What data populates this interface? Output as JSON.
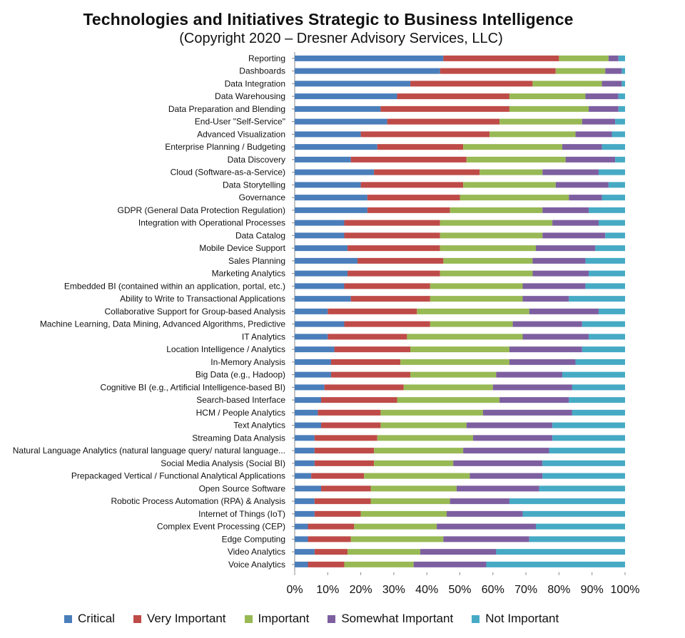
{
  "chart_data": {
    "type": "bar",
    "orientation": "horizontal",
    "stacked": "percent",
    "title": "Technologies and Initiatives Strategic to Business Intelligence",
    "subtitle": "(Copyright 2020 – Dresner Advisory Services, LLC)",
    "xlim": [
      0,
      100
    ],
    "x_ticks": [
      "0%",
      "10%",
      "20%",
      "30%",
      "40%",
      "50%",
      "60%",
      "70%",
      "80%",
      "90%",
      "100%"
    ],
    "legend_position": "bottom",
    "categories": [
      "Reporting",
      "Dashboards",
      "Data Integration",
      "Data Warehousing",
      "Data Preparation and Blending",
      "End-User \"Self-Service\"",
      "Advanced Visualization",
      "Enterprise Planning / Budgeting",
      "Data Discovery",
      "Cloud (Software-as-a-Service)",
      "Data Storytelling",
      "Governance",
      "GDPR (General Data Protection Regulation)",
      "Integration with Operational Processes",
      "Data Catalog",
      "Mobile Device Support",
      "Sales Planning",
      "Marketing Analytics",
      "Embedded BI (contained within an application, portal, etc.)",
      "Ability to Write to Transactional Applications",
      "Collaborative Support for Group-based Analysis",
      "Machine Learning, Data Mining, Advanced Algorithms, Predictive",
      "IT Analytics",
      "Location Intelligence / Analytics",
      "In-Memory Analysis",
      "Big Data (e.g., Hadoop)",
      "Cognitive BI (e.g., Artificial Intelligence-based BI)",
      "Search-based Interface",
      "HCM / People Analytics",
      "Text Analytics",
      "Streaming Data Analysis",
      "Natural Language Analytics (natural language query/ natural language...",
      "Social Media Analysis (Social BI)",
      "Prepackaged Vertical / Functional Analytical Applications",
      "Open Source Software",
      "Robotic Process Automation (RPA) & Analysis",
      "Internet of Things (IoT)",
      "Complex Event Processing (CEP)",
      "Edge Computing",
      "Video Analytics",
      "Voice Analytics"
    ],
    "series": [
      {
        "name": "Critical",
        "color": "#4a7ebb",
        "values": [
          45,
          44,
          35,
          31,
          26,
          28,
          20,
          25,
          17,
          24,
          20,
          22,
          22,
          15,
          15,
          16,
          19,
          16,
          15,
          17,
          10,
          15,
          10,
          12,
          11,
          11,
          9,
          8,
          7,
          8,
          6,
          6,
          6,
          5,
          8,
          6,
          6,
          4,
          4,
          6,
          4
        ]
      },
      {
        "name": "Very Important",
        "color": "#be4b48",
        "values": [
          35,
          35,
          37,
          34,
          39,
          34,
          39,
          26,
          35,
          32,
          31,
          28,
          25,
          29,
          29,
          28,
          26,
          28,
          26,
          24,
          27,
          26,
          24,
          23,
          21,
          24,
          24,
          23,
          19,
          18,
          19,
          18,
          18,
          16,
          15,
          17,
          14,
          14,
          13,
          10,
          11
        ]
      },
      {
        "name": "Important",
        "color": "#98b954",
        "values": [
          15,
          15,
          21,
          23,
          24,
          25,
          26,
          30,
          30,
          19,
          28,
          33,
          28,
          34,
          31,
          29,
          27,
          28,
          28,
          28,
          34,
          25,
          35,
          30,
          33,
          26,
          27,
          31,
          31,
          26,
          29,
          27,
          24,
          32,
          26,
          24,
          26,
          25,
          28,
          22,
          21
        ]
      },
      {
        "name": "Somewhat Important",
        "color": "#7d5fa0",
        "values": [
          3,
          5,
          6,
          10,
          9,
          10,
          11,
          12,
          15,
          17,
          16,
          10,
          14,
          14,
          19,
          18,
          16,
          17,
          19,
          14,
          21,
          21,
          20,
          22,
          20,
          20,
          24,
          21,
          27,
          26,
          24,
          26,
          27,
          22,
          25,
          18,
          23,
          30,
          26,
          23,
          22
        ]
      },
      {
        "name": "Not Important",
        "color": "#46aac5",
        "values": [
          2,
          1,
          1,
          2,
          2,
          3,
          4,
          7,
          3,
          8,
          5,
          7,
          11,
          8,
          6,
          9,
          12,
          11,
          12,
          17,
          8,
          13,
          11,
          13,
          15,
          19,
          16,
          17,
          16,
          22,
          22,
          23,
          25,
          25,
          26,
          35,
          31,
          27,
          29,
          39,
          42
        ]
      }
    ]
  }
}
